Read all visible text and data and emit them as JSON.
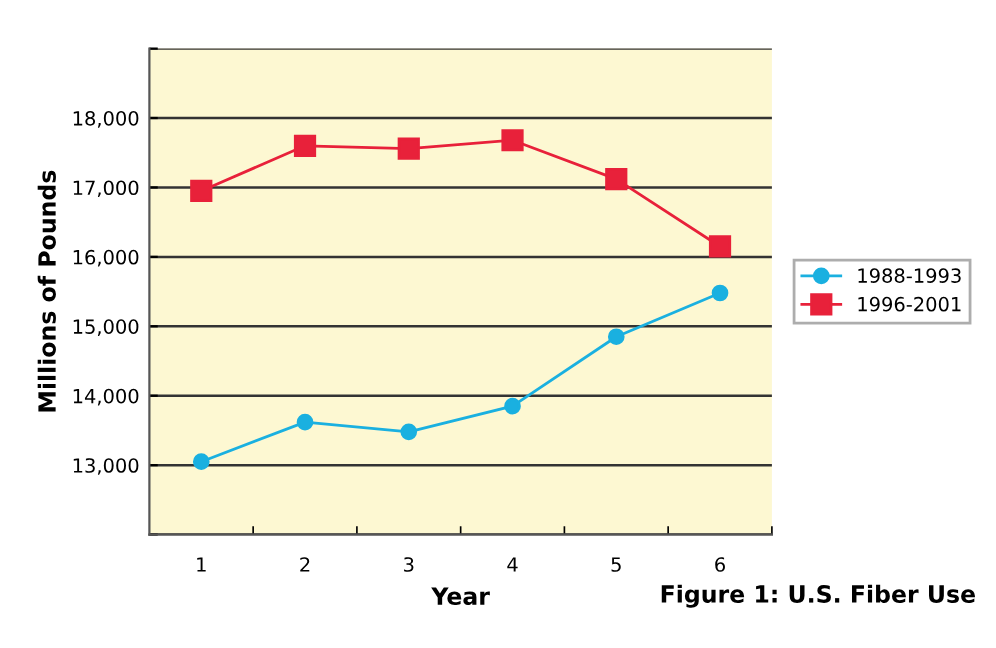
{
  "chart_data": {
    "type": "line",
    "title": "Figure 1: U.S. Fiber Use",
    "xlabel": "Year",
    "ylabel": "Millions of Pounds",
    "categories": [
      "1",
      "2",
      "3",
      "4",
      "5",
      "6"
    ],
    "series": [
      {
        "name": "1988-1993",
        "color": "#1ab0e0",
        "marker": "circle",
        "values": [
          13050,
          13620,
          13480,
          13850,
          14850,
          15480
        ]
      },
      {
        "name": "1996-2001",
        "color": "#e8213a",
        "marker": "square",
        "values": [
          16950,
          17600,
          17560,
          17680,
          17120,
          16150
        ]
      }
    ],
    "ylim": [
      12000,
      19000
    ],
    "yticks": [
      {
        "value": 12000,
        "label": null
      },
      {
        "value": 13000,
        "label": "13,000"
      },
      {
        "value": 14000,
        "label": "14,000"
      },
      {
        "value": 15000,
        "label": "15,000"
      },
      {
        "value": 16000,
        "label": "16,000"
      },
      {
        "value": 17000,
        "label": "17,000"
      },
      {
        "value": 18000,
        "label": "18,000"
      },
      {
        "value": 19000,
        "label": null
      }
    ],
    "grid": "y",
    "legend": "right"
  }
}
